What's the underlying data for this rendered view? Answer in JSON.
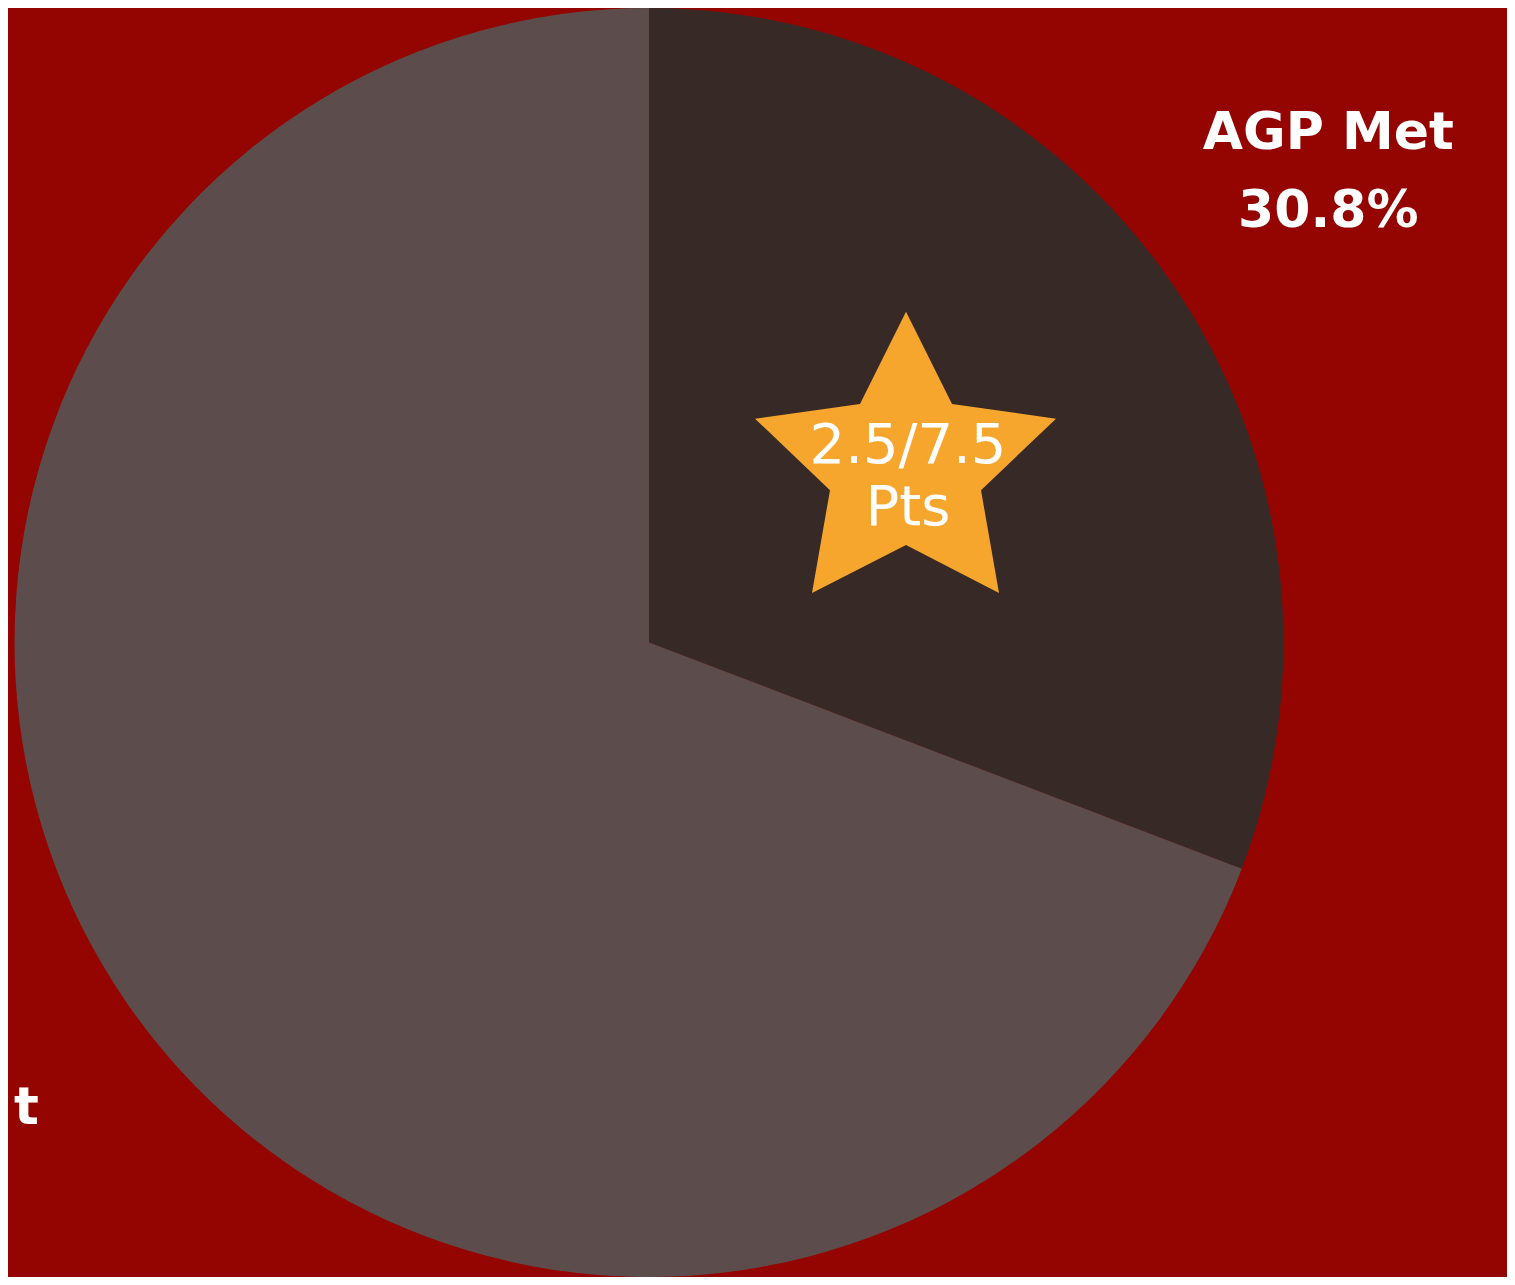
{
  "chart_data": {
    "type": "pie",
    "categories": [
      "AGP Met",
      "t"
    ],
    "values": [
      30.8,
      69.2
    ],
    "colors": [
      "#372a26",
      "#5c4d4c"
    ],
    "value_labels": [
      "30.8%",
      null
    ],
    "annotations": [
      "2.5/7.5 Pts"
    ],
    "legend": false
  }
}
